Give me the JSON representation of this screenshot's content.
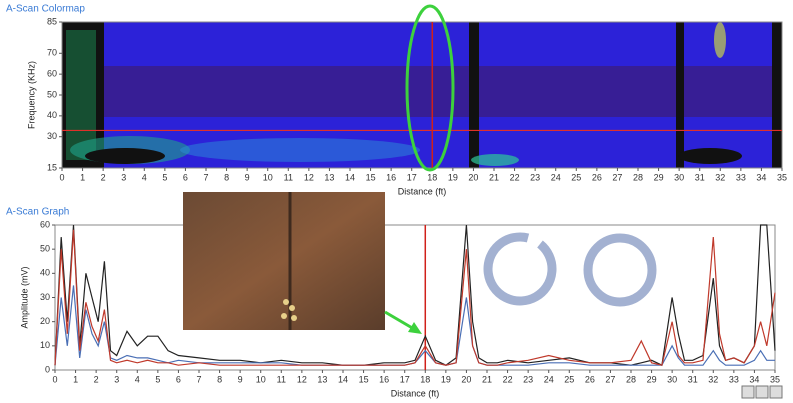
{
  "chart_data": [
    {
      "type": "colormap",
      "title": "A-Scan Colormap",
      "x_label": "Distance (ft)",
      "y_label": "Frequency (KHz)",
      "xlim": [
        0,
        35
      ],
      "xticks": [
        0,
        1,
        2,
        3,
        4,
        5,
        6,
        7,
        8,
        9,
        10,
        11,
        12,
        13,
        14,
        15,
        16,
        17,
        18,
        19,
        20,
        21,
        22,
        23,
        24,
        25,
        26,
        27,
        28,
        29,
        30,
        31,
        32,
        33,
        34,
        35
      ],
      "ylim": [
        15,
        85
      ],
      "yticks": [
        15,
        30,
        40,
        50,
        60,
        70,
        85
      ],
      "cursor_x": 18,
      "cursor_y": 33
    },
    {
      "type": "line",
      "title": "A-Scan Graph",
      "x_label": "Distance (ft)",
      "y_label": "Amplitude (mV)",
      "xlim": [
        0,
        35
      ],
      "xticks": [
        0,
        1,
        2,
        3,
        4,
        5,
        6,
        7,
        8,
        9,
        10,
        11,
        12,
        13,
        14,
        15,
        16,
        17,
        18,
        19,
        20,
        21,
        22,
        23,
        24,
        25,
        26,
        27,
        28,
        29,
        30,
        31,
        32,
        33,
        34,
        35
      ],
      "ylim": [
        0,
        60
      ],
      "yticks": [
        0,
        10,
        20,
        30,
        40,
        50,
        60
      ],
      "cursor_x": 18,
      "x": [
        0,
        0.3,
        0.6,
        0.9,
        1.2,
        1.5,
        1.8,
        2.1,
        2.4,
        2.7,
        3,
        3.5,
        4,
        4.5,
        5,
        5.5,
        6,
        7,
        8,
        9,
        10,
        11,
        12,
        13,
        14,
        15,
        16,
        17,
        17.5,
        18,
        18.5,
        19,
        19.5,
        20,
        20.3,
        20.6,
        21,
        21.5,
        22,
        23,
        24,
        25,
        26,
        27,
        28,
        28.5,
        29,
        29.5,
        30,
        30.3,
        30.6,
        31,
        31.5,
        32,
        32.3,
        32.6,
        33,
        33.5,
        34,
        34.3,
        34.6,
        35
      ],
      "series": [
        {
          "color": "#222222",
          "values": [
            2,
            55,
            20,
            60,
            10,
            40,
            30,
            20,
            45,
            8,
            6,
            16,
            10,
            14,
            14,
            8,
            6,
            5,
            4,
            4,
            3,
            4,
            3,
            3,
            2,
            2,
            3,
            3,
            4,
            14,
            4,
            2,
            5,
            60,
            20,
            5,
            3,
            3,
            4,
            3,
            4,
            5,
            3,
            3,
            2,
            3,
            4,
            2,
            30,
            15,
            4,
            4,
            6,
            38,
            10,
            4,
            5,
            3,
            10,
            60,
            60,
            8
          ]
        },
        {
          "color": "#4a6fb5",
          "values": [
            2,
            30,
            10,
            35,
            5,
            25,
            15,
            10,
            20,
            5,
            4,
            6,
            5,
            5,
            4,
            3,
            4,
            3,
            3,
            3,
            3,
            3,
            2,
            2,
            2,
            2,
            2,
            2,
            3,
            8,
            3,
            2,
            3,
            30,
            10,
            3,
            2,
            2,
            2,
            2,
            3,
            3,
            2,
            2,
            2,
            2,
            2,
            2,
            10,
            5,
            2,
            2,
            2,
            8,
            4,
            2,
            2,
            2,
            4,
            8,
            4,
            4
          ]
        },
        {
          "color": "#c0392b",
          "values": [
            2,
            50,
            15,
            58,
            8,
            28,
            18,
            12,
            25,
            4,
            3,
            4,
            3,
            4,
            3,
            3,
            2,
            3,
            2,
            2,
            2,
            2,
            2,
            2,
            2,
            2,
            2,
            2,
            3,
            10,
            3,
            2,
            3,
            50,
            10,
            3,
            2,
            2,
            3,
            4,
            6,
            4,
            3,
            3,
            4,
            12,
            3,
            2,
            20,
            6,
            3,
            3,
            4,
            55,
            15,
            4,
            5,
            3,
            10,
            20,
            10,
            32
          ]
        }
      ]
    }
  ]
}
